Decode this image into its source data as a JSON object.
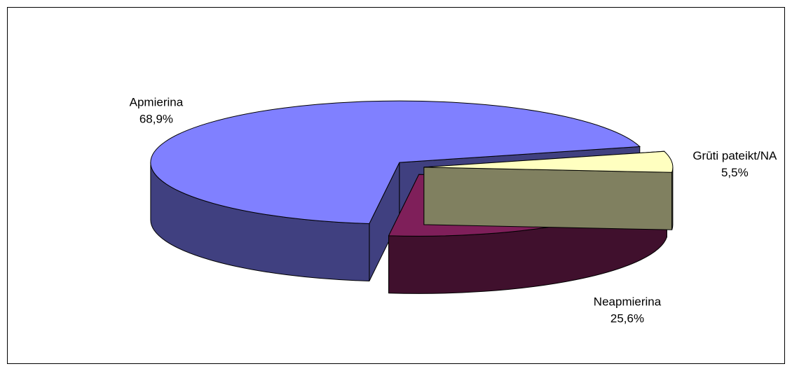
{
  "chart_data": {
    "type": "pie3d",
    "categories": [
      "Apmierina",
      "Neapmierina",
      "Grūti pateikt/NA"
    ],
    "values": [
      68.9,
      25.6,
      5.5
    ],
    "value_labels": [
      "68,9%",
      "25,6%",
      "5,5%"
    ],
    "colors": [
      "#8080ff",
      "#7f1f5a",
      "#ffffc0"
    ]
  }
}
